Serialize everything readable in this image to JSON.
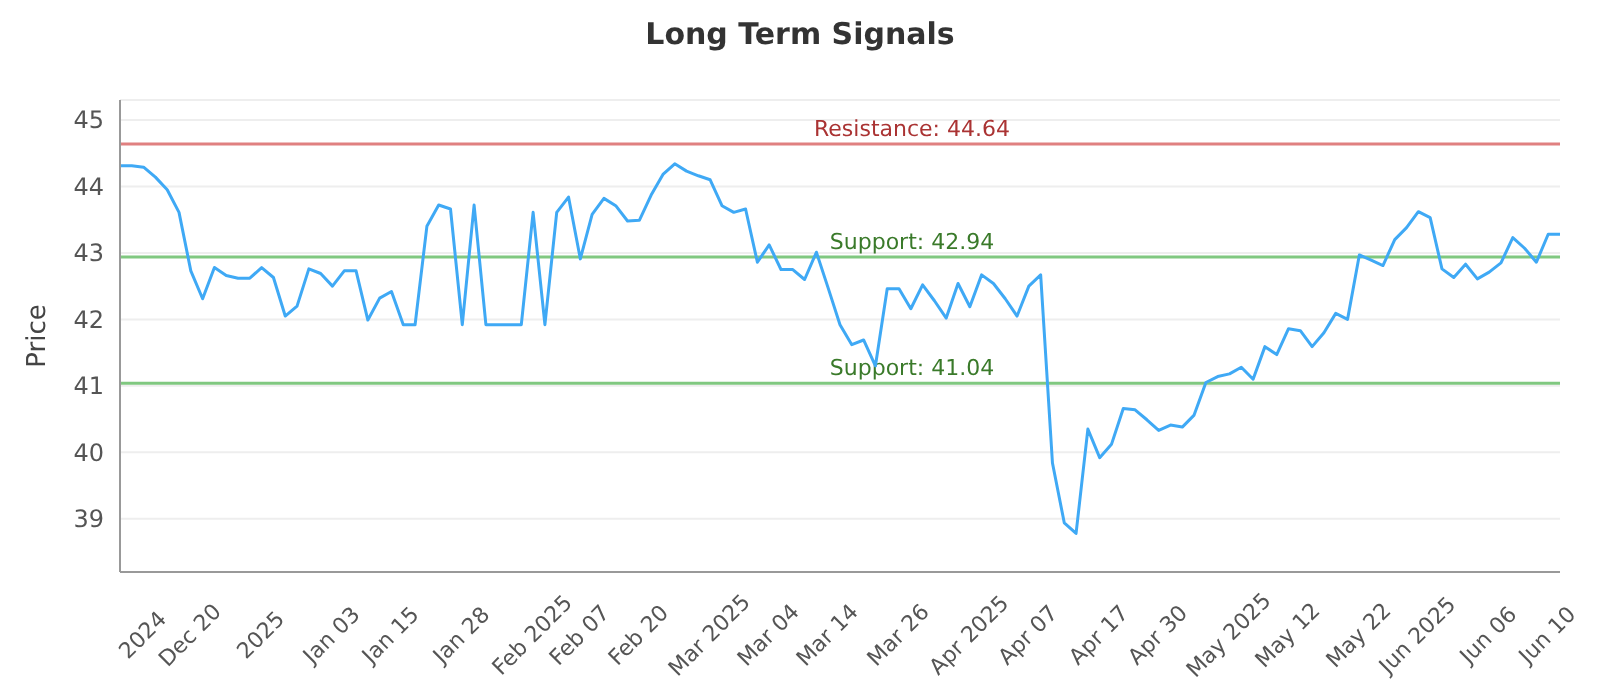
{
  "chart_data": {
    "type": "line",
    "title": "Long Term Signals",
    "ylabel": "Price",
    "categories": [
      null,
      null,
      "2024",
      null,
      null,
      null,
      "Dec 20",
      null,
      null,
      null,
      null,
      null,
      "2025",
      null,
      null,
      null,
      null,
      null,
      "Jan 03",
      null,
      null,
      null,
      null,
      "Jan 15",
      null,
      null,
      null,
      null,
      null,
      "Jan 28",
      null,
      null,
      null,
      null,
      null,
      "Feb 2025",
      null,
      null,
      null,
      "Feb 07",
      null,
      null,
      null,
      null,
      "Feb 20",
      null,
      null,
      null,
      null,
      null,
      "Mar 2025",
      null,
      null,
      null,
      null,
      "Mar 04",
      null,
      null,
      null,
      null,
      "Mar 14",
      null,
      null,
      null,
      null,
      null,
      "Mar 26",
      null,
      null,
      null,
      null,
      null,
      "Apr 2025",
      null,
      null,
      null,
      null,
      "Apr 07",
      null,
      null,
      null,
      null,
      null,
      "Apr 17",
      null,
      null,
      null,
      null,
      "Apr 30",
      null,
      null,
      null,
      null,
      null,
      "May 2025",
      null,
      null,
      null,
      null,
      "May 12",
      null,
      null,
      null,
      null,
      null,
      "May 22",
      null,
      null,
      null,
      null,
      "Jun 2025",
      null,
      null,
      null,
      null,
      null,
      "Jun 06",
      null,
      null,
      null,
      null,
      "Jun 10",
      null
    ],
    "series": [
      {
        "color": "#3fa9f5",
        "values": [
          44.31,
          44.31,
          44.29,
          44.14,
          43.95,
          43.61,
          42.73,
          42.31,
          42.78,
          42.66,
          42.62,
          42.62,
          42.78,
          42.63,
          42.05,
          42.2,
          42.76,
          42.69,
          42.5,
          42.73,
          42.73,
          41.99,
          42.32,
          42.42,
          41.92,
          41.92,
          43.4,
          43.72,
          43.66,
          41.92,
          43.72,
          41.92,
          41.92,
          41.92,
          41.92,
          43.61,
          41.92,
          43.61,
          43.84,
          42.91,
          43.58,
          43.82,
          43.71,
          43.48,
          43.49,
          43.87,
          44.18,
          44.34,
          44.23,
          44.16,
          44.1,
          43.71,
          43.61,
          43.66,
          42.86,
          43.12,
          42.75,
          42.75,
          42.6,
          43.01,
          42.47,
          41.92,
          41.62,
          41.69,
          41.3,
          42.46,
          42.46,
          42.16,
          42.52,
          42.28,
          42.02,
          42.54,
          42.19,
          42.67,
          42.54,
          42.31,
          42.05,
          42.5,
          42.67,
          39.84,
          38.94,
          38.78,
          40.35,
          39.92,
          40.12,
          40.66,
          40.64,
          40.49,
          40.33,
          40.41,
          40.38,
          40.56,
          41.05,
          41.14,
          41.18,
          41.28,
          41.1,
          41.59,
          41.47,
          41.86,
          41.83,
          41.59,
          41.8,
          42.09,
          42.0,
          42.97,
          42.89,
          42.81,
          43.2,
          43.38,
          43.62,
          43.53,
          42.76,
          42.63,
          42.83,
          42.61,
          42.71,
          42.85,
          43.23,
          43.07,
          42.86,
          43.28,
          43.28
        ]
      }
    ],
    "ylim": [
      38.2,
      45.3
    ],
    "yticks": [
      39,
      40,
      41,
      42,
      43,
      44,
      45
    ],
    "grid": "y",
    "marker": "none",
    "line_style": "solid",
    "ref_lines": [
      {
        "axis": "y",
        "value": 44.64,
        "label": "Resistance: 44.64",
        "color": "#e08080"
      },
      {
        "axis": "y",
        "value": 42.94,
        "label": "Support: 42.94",
        "color": "#80c880"
      },
      {
        "axis": "y",
        "value": 41.04,
        "label": "Support: 41.04",
        "color": "#80c880"
      }
    ]
  }
}
